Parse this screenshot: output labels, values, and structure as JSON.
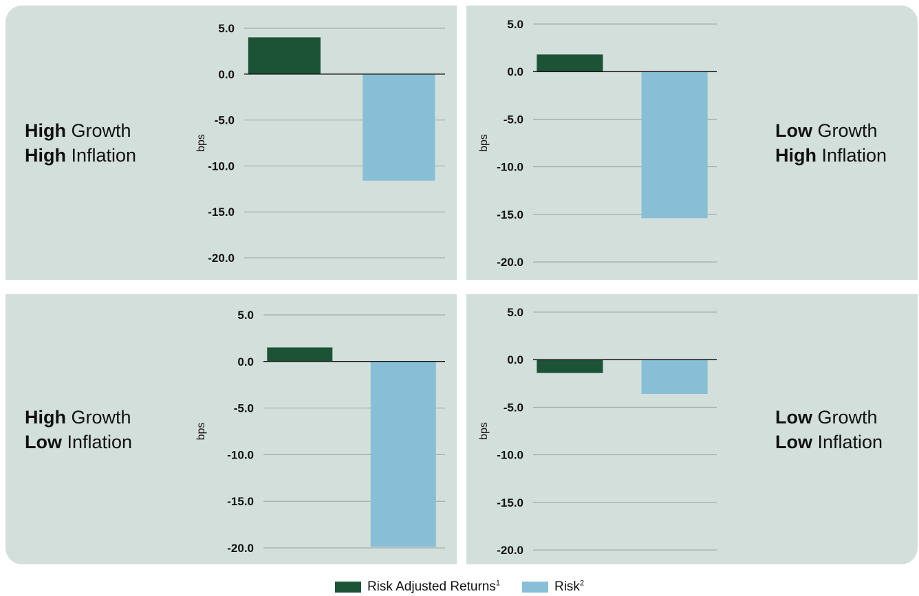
{
  "colors": {
    "risk_adjusted_returns": "#1c5236",
    "risk": "#89bfd6",
    "panel_bg": "#d3dfdb"
  },
  "legend": {
    "risk_adjusted_returns": {
      "label": "Risk Adjusted Returns",
      "sup": "1"
    },
    "risk": {
      "label": "Risk",
      "sup": "2"
    }
  },
  "chart_data": [
    {
      "type": "bar",
      "scenario": {
        "growth_bold": "High",
        "growth": " Growth",
        "inflation_bold": "High",
        "inflation": " Inflation"
      },
      "ylabel": "bps",
      "ylim": [
        -20,
        5
      ],
      "yticks": [
        "5.0",
        "0.0",
        "-5.0",
        "-10.0",
        "-15.0",
        "-20.0"
      ],
      "series": [
        {
          "name": "Risk Adjusted Returns",
          "values": [
            4.0
          ]
        },
        {
          "name": "Risk",
          "values": [
            -11.6
          ]
        }
      ]
    },
    {
      "type": "bar",
      "scenario": {
        "growth_bold": "Low",
        "growth": " Growth",
        "inflation_bold": "High",
        "inflation": " Inflation"
      },
      "ylabel": "bps",
      "ylim": [
        -20,
        5
      ],
      "yticks": [
        "5.0",
        "0.0",
        "-5.0",
        "-10.0",
        "-15.0",
        "-20.0"
      ],
      "series": [
        {
          "name": "Risk Adjusted Returns",
          "values": [
            1.8
          ]
        },
        {
          "name": "Risk",
          "values": [
            -15.4
          ]
        }
      ]
    },
    {
      "type": "bar",
      "scenario": {
        "growth_bold": "High",
        "growth": " Growth",
        "inflation_bold": "Low",
        "inflation": " Inflation"
      },
      "ylabel": "bps",
      "ylim": [
        -20,
        5
      ],
      "yticks": [
        "5.0",
        "0.0",
        "-5.0",
        "-10.0",
        "-15.0",
        "-20.0"
      ],
      "series": [
        {
          "name": "Risk Adjusted Returns",
          "values": [
            1.5
          ]
        },
        {
          "name": "Risk",
          "values": [
            -19.9
          ]
        }
      ]
    },
    {
      "type": "bar",
      "scenario": {
        "growth_bold": "Low",
        "growth": " Growth",
        "inflation_bold": "Low",
        "inflation": " Inflation"
      },
      "ylabel": "bps",
      "ylim": [
        -20,
        5
      ],
      "yticks": [
        "5.0",
        "0.0",
        "-5.0",
        "-10.0",
        "-15.0",
        "-20.0"
      ],
      "series": [
        {
          "name": "Risk Adjusted Returns",
          "values": [
            -1.4
          ]
        },
        {
          "name": "Risk",
          "values": [
            -3.6
          ]
        }
      ]
    }
  ]
}
